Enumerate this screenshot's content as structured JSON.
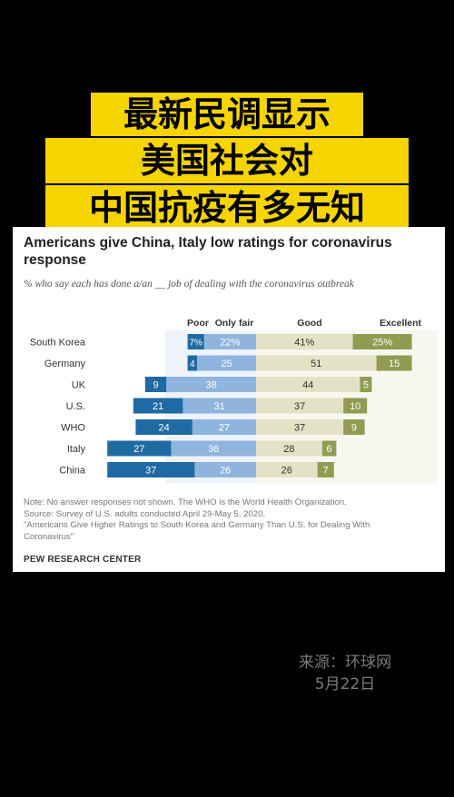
{
  "headline": {
    "line1": "最新民调显示",
    "line2": "美国社会对",
    "line3": "中国抗疫有多无知"
  },
  "figure": {
    "title": "Americans give China, Italy low ratings for coronavirus response",
    "subtitle": "% who say each has done a/an __ job of dealing with the coronavirus outbreak",
    "note_lines": [
      "Note: No answer responses not shown. The WHO is the World Health Organization.",
      "Source: Survey of U.S. adults conducted April 29-May 5, 2020.",
      "\"Americans Give Higher Ratings to South Korea and Germany Than U.S. for Dealing With",
      "Coronavirus\""
    ],
    "footer": "PEW RESEARCH CENTER"
  },
  "chart_data": {
    "type": "bar",
    "categories": [
      "South Korea",
      "Germany",
      "UK",
      "U.S.",
      "WHO",
      "Italy",
      "China"
    ],
    "series": [
      {
        "name": "Poor",
        "values": [
          7,
          4,
          9,
          21,
          24,
          27,
          37
        ],
        "labels": [
          "7%",
          "4",
          "9",
          "21",
          "24",
          "27",
          "37"
        ],
        "color": "#1f6aa3"
      },
      {
        "name": "Only fair",
        "values": [
          22,
          25,
          38,
          31,
          27,
          36,
          26
        ],
        "labels": [
          "22%",
          "25",
          "38",
          "31",
          "27",
          "36",
          "26"
        ],
        "color": "#8fb4dd"
      },
      {
        "name": "Good",
        "values": [
          41,
          51,
          44,
          37,
          37,
          28,
          26
        ],
        "labels": [
          "41%",
          "51",
          "44",
          "37",
          "37",
          "28",
          "26"
        ],
        "color": "#e3e2c6"
      },
      {
        "name": "Excellent",
        "values": [
          25,
          15,
          5,
          10,
          9,
          6,
          7
        ],
        "labels": [
          "25%",
          "15",
          "5",
          "10",
          "9",
          "6",
          "7"
        ],
        "color": "#8f9c52"
      }
    ]
  },
  "source_caption": {
    "line1": "来源：环球网",
    "line2": "5月22日"
  }
}
